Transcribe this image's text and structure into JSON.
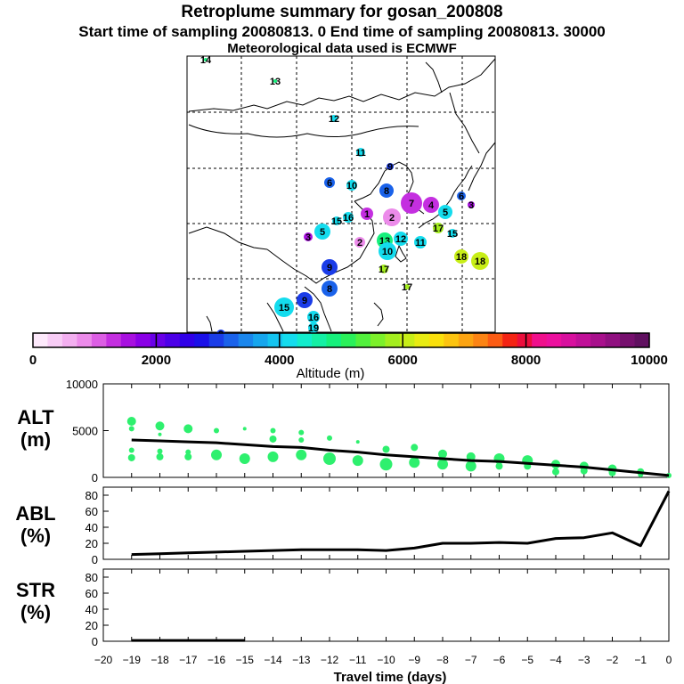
{
  "title": "Retroplume summary for gosan_200808",
  "subtitle": "Start time of sampling 20080813.     0     End time of sampling 20080813. 30000",
  "met_note": "Meteorological data used is ECMWF",
  "colorbar": {
    "label": "Altitude  (m)",
    "ticks": [
      "0",
      "2000",
      "4000",
      "6000",
      "8000",
      "10000"
    ],
    "colors": [
      "#fde9fb",
      "#f8cdf6",
      "#f3aff0",
      "#ec8bea",
      "#dc5ee4",
      "#c42fe0",
      "#a810e0",
      "#8a00e6",
      "#6900e8",
      "#4c00e8",
      "#3000e8",
      "#1a10e8",
      "#1a3ce8",
      "#1a62ea",
      "#1a86ec",
      "#16a6ee",
      "#14c4f0",
      "#14dcee",
      "#12eccc",
      "#14f0a4",
      "#16f07c",
      "#2af05a",
      "#52f03c",
      "#7cf02a",
      "#a4ee1e",
      "#c8ee18",
      "#e8ec12",
      "#fae00c",
      "#fcc410",
      "#fca412",
      "#fc8414",
      "#fc5c14",
      "#f42414",
      "#ec0e3c",
      "#f0108c",
      "#ec109e",
      "#d8109e",
      "#c01098",
      "#a8108c",
      "#901080",
      "#76106e",
      "#601060"
    ]
  },
  "map_labels": [
    {
      "n": "14",
      "c": "#16f07c"
    },
    {
      "n": "13",
      "c": "#16f07c"
    },
    {
      "n": "12",
      "c": "#14dcee"
    },
    {
      "n": "11",
      "c": "#14dcee"
    },
    {
      "n": "10",
      "c": "#14dcee"
    },
    {
      "n": "9",
      "c": "#1a3ce8"
    },
    {
      "n": "8",
      "c": "#1a62ea"
    },
    {
      "n": "7",
      "c": "#c42fe0"
    },
    {
      "n": "6",
      "c": "#1a62ea"
    },
    {
      "n": "5",
      "c": "#14dcee"
    },
    {
      "n": "4",
      "c": "#c42fe0"
    },
    {
      "n": "3",
      "c": "#a810e0"
    },
    {
      "n": "2",
      "c": "#ec8bea"
    },
    {
      "n": "1",
      "c": "#c42fe0"
    },
    {
      "n": "16",
      "c": "#14dcee"
    },
    {
      "n": "15",
      "c": "#14dcee"
    },
    {
      "n": "17",
      "c": "#a4ee1e"
    },
    {
      "n": "18",
      "c": "#c8ee18"
    },
    {
      "n": "19",
      "c": "#14dcee"
    }
  ],
  "panels": {
    "alt": {
      "label_top": "ALT",
      "label_bottom": "(m)"
    },
    "abl": {
      "label_top": "ABL",
      "label_bottom": "(%)"
    },
    "str": {
      "label_top": "STR",
      "label_bottom": "(%)"
    }
  },
  "chart_data": [
    {
      "type": "line",
      "name": "ALT",
      "xlim": [
        -20,
        0
      ],
      "ylim": [
        0,
        10000
      ],
      "x_ticks": [
        -20,
        -19,
        -18,
        -17,
        -16,
        -15,
        -14,
        -13,
        -12,
        -11,
        -10,
        -9,
        -8,
        -7,
        -6,
        -5,
        -4,
        -3,
        -2,
        -1,
        0
      ],
      "y_ticks": [
        0,
        5000,
        10000
      ],
      "x": [
        -19,
        -18,
        -17,
        -16,
        -15,
        -14,
        -13,
        -12,
        -11,
        -10,
        -9,
        -8,
        -7,
        -6,
        -5,
        -4,
        -3,
        -2,
        -1,
        0
      ],
      "y": [
        4000,
        3900,
        3800,
        3700,
        3500,
        3300,
        3200,
        2900,
        2700,
        2400,
        2200,
        2000,
        1800,
        1700,
        1500,
        1300,
        1100,
        800,
        500,
        200
      ],
      "scatter": [
        {
          "x": -19,
          "y": 6000,
          "s": 5
        },
        {
          "x": -19,
          "y": 5200,
          "s": 3
        },
        {
          "x": -19,
          "y": 2900,
          "s": 3
        },
        {
          "x": -19,
          "y": 2100,
          "s": 4
        },
        {
          "x": -18,
          "y": 5500,
          "s": 5
        },
        {
          "x": -18,
          "y": 4600,
          "s": 2
        },
        {
          "x": -18,
          "y": 2800,
          "s": 3
        },
        {
          "x": -18,
          "y": 2200,
          "s": 4
        },
        {
          "x": -17,
          "y": 5200,
          "s": 5
        },
        {
          "x": -17,
          "y": 2700,
          "s": 3
        },
        {
          "x": -17,
          "y": 2200,
          "s": 4
        },
        {
          "x": -16,
          "y": 5000,
          "s": 3
        },
        {
          "x": -16,
          "y": 2400,
          "s": 6
        },
        {
          "x": -15,
          "y": 5200,
          "s": 2
        },
        {
          "x": -15,
          "y": 2000,
          "s": 6
        },
        {
          "x": -14,
          "y": 5000,
          "s": 3
        },
        {
          "x": -14,
          "y": 4100,
          "s": 4
        },
        {
          "x": -14,
          "y": 2200,
          "s": 6
        },
        {
          "x": -13,
          "y": 4800,
          "s": 3
        },
        {
          "x": -13,
          "y": 4000,
          "s": 3
        },
        {
          "x": -13,
          "y": 2400,
          "s": 6
        },
        {
          "x": -12,
          "y": 4200,
          "s": 3
        },
        {
          "x": -12,
          "y": 2000,
          "s": 7
        },
        {
          "x": -11,
          "y": 3800,
          "s": 2
        },
        {
          "x": -11,
          "y": 1800,
          "s": 6
        },
        {
          "x": -10,
          "y": 3000,
          "s": 4
        },
        {
          "x": -10,
          "y": 1400,
          "s": 7
        },
        {
          "x": -9,
          "y": 3200,
          "s": 4
        },
        {
          "x": -9,
          "y": 1600,
          "s": 6
        },
        {
          "x": -8,
          "y": 2500,
          "s": 5
        },
        {
          "x": -8,
          "y": 1400,
          "s": 6
        },
        {
          "x": -7,
          "y": 2200,
          "s": 5
        },
        {
          "x": -7,
          "y": 1200,
          "s": 6
        },
        {
          "x": -6,
          "y": 2000,
          "s": 6
        },
        {
          "x": -6,
          "y": 1200,
          "s": 4
        },
        {
          "x": -5,
          "y": 1800,
          "s": 6
        },
        {
          "x": -5,
          "y": 1200,
          "s": 4
        },
        {
          "x": -4,
          "y": 1400,
          "s": 5
        },
        {
          "x": -4,
          "y": 600,
          "s": 4
        },
        {
          "x": -3,
          "y": 1200,
          "s": 5
        },
        {
          "x": -3,
          "y": 700,
          "s": 4
        },
        {
          "x": -2,
          "y": 900,
          "s": 5
        },
        {
          "x": -2,
          "y": 500,
          "s": 4
        },
        {
          "x": -1,
          "y": 600,
          "s": 4
        },
        {
          "x": -1,
          "y": 300,
          "s": 3
        },
        {
          "x": 0,
          "y": 200,
          "s": 3
        }
      ],
      "ylabel": "ALT (m)"
    },
    {
      "type": "line",
      "name": "ABL",
      "xlim": [
        -20,
        0
      ],
      "ylim": [
        0,
        90
      ],
      "y_ticks": [
        0,
        20,
        40,
        60,
        80
      ],
      "x": [
        -19,
        -18,
        -17,
        -16,
        -15,
        -14,
        -13,
        -12,
        -11,
        -10,
        -9,
        -8,
        -7,
        -6,
        -5,
        -4,
        -3,
        -2,
        -1,
        0
      ],
      "y": [
        6,
        7,
        8,
        9,
        10,
        11,
        12,
        12,
        12,
        11,
        14,
        20,
        20,
        21,
        20,
        26,
        27,
        33,
        17,
        85
      ],
      "ylabel": "ABL (%)"
    },
    {
      "type": "line",
      "name": "STR",
      "xlim": [
        -20,
        0
      ],
      "ylim": [
        0,
        90
      ],
      "y_ticks": [
        0,
        20,
        40,
        60,
        80
      ],
      "x": [
        -19,
        -18,
        -17,
        -16,
        -15
      ],
      "y": [
        1,
        1,
        1,
        1,
        1
      ],
      "ylabel": "STR (%)",
      "xlabel": "Travel time (days)"
    }
  ]
}
